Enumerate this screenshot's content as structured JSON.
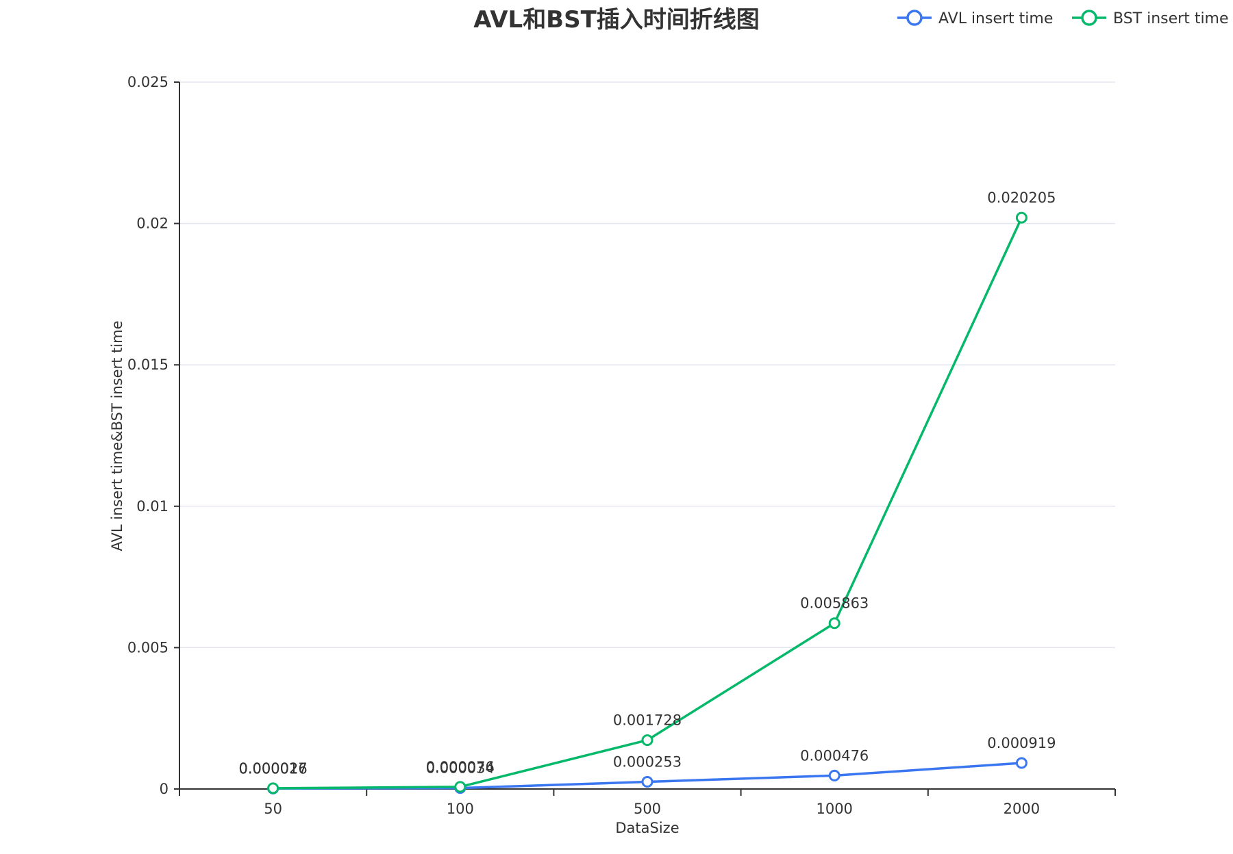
{
  "chart_data": {
    "type": "line",
    "title": "AVL和BST插入时间折线图",
    "xlabel": "DataSize",
    "ylabel": "AVL insert time&BST insert time",
    "categories": [
      "50",
      "100",
      "500",
      "1000",
      "2000"
    ],
    "ylim": [
      0,
      0.025
    ],
    "yticks": [
      "0",
      "0.005",
      "0.01",
      "0.015",
      "0.02",
      "0.025"
    ],
    "grid": true,
    "legend_position": "top-right",
    "series": [
      {
        "name": "AVL insert time",
        "color": "#3a76f0",
        "values": [
          1.6e-05,
          3.4e-05,
          0.000253,
          0.000476,
          0.000919
        ],
        "labels": [
          "0.000016",
          "0.000034",
          "0.000253",
          "0.000476",
          "0.000919"
        ]
      },
      {
        "name": "BST insert time",
        "color": "#05b86a",
        "values": [
          2.7e-05,
          7.6e-05,
          0.001728,
          0.005863,
          0.020205
        ],
        "labels": [
          "0.000027",
          "0.000076",
          "0.001728",
          "0.005863",
          "0.020205"
        ]
      }
    ]
  }
}
